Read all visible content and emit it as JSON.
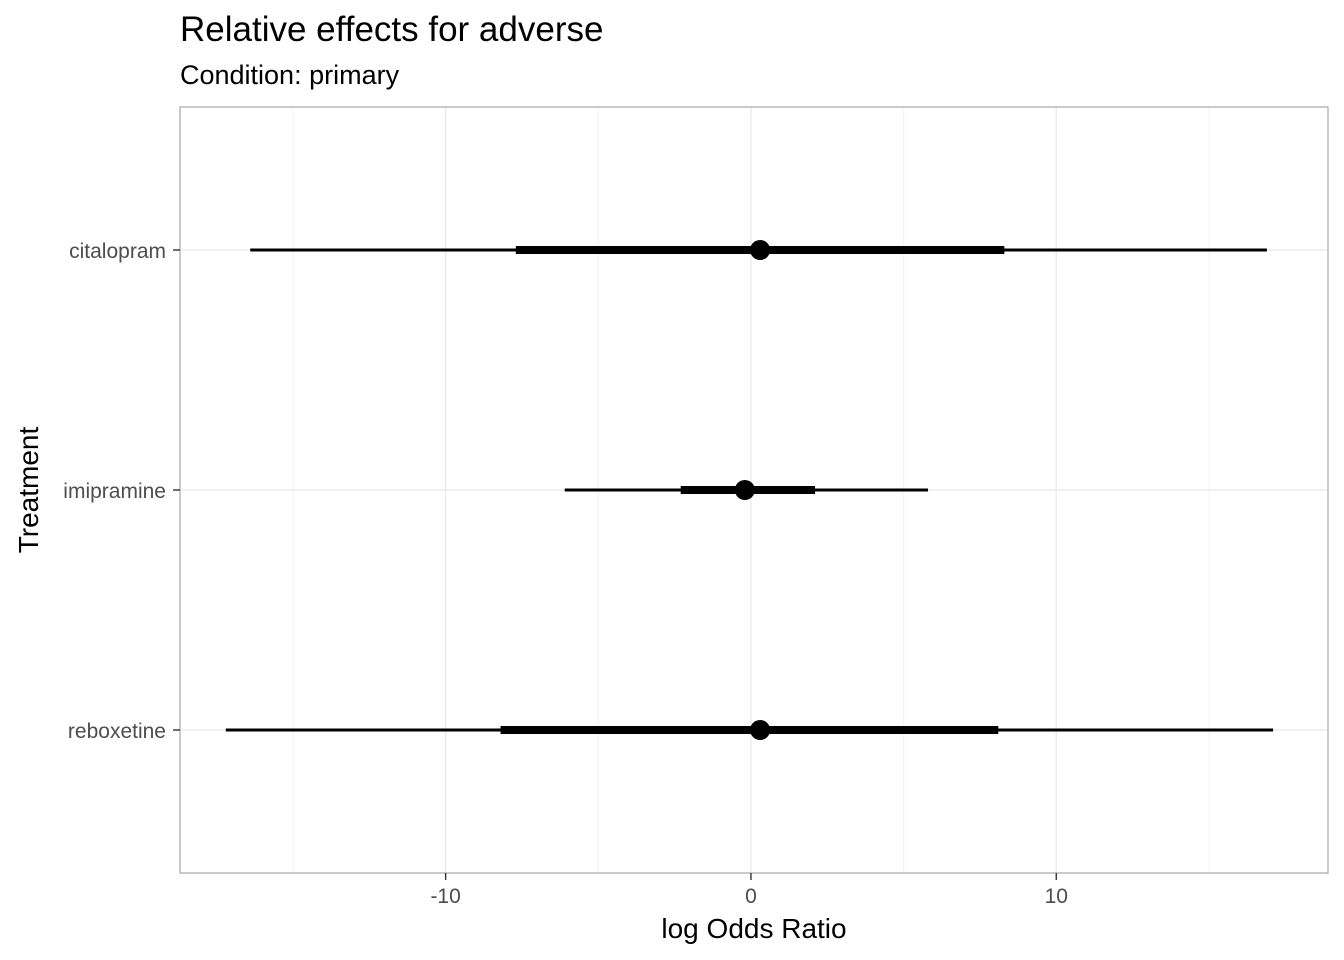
{
  "chart_data": {
    "type": "forest",
    "title": "Relative effects for adverse",
    "subtitle": "Condition: primary",
    "xlabel": "log Odds Ratio",
    "ylabel": "Treatment",
    "xlim": [
      -18.7,
      18.9
    ],
    "x_ticks": [
      -10,
      0,
      10
    ],
    "x_tick_labels": [
      "-10",
      "0",
      "10"
    ],
    "categories": [
      "citalopram",
      "imipramine",
      "reboxetine"
    ],
    "estimates": [
      {
        "treatment": "citalopram",
        "point": 0.3,
        "inner": [
          -7.7,
          8.3
        ],
        "outer": [
          -16.4,
          16.9
        ]
      },
      {
        "treatment": "imipramine",
        "point": -0.2,
        "inner": [
          -2.3,
          2.1
        ],
        "outer": [
          -6.1,
          5.8
        ]
      },
      {
        "treatment": "reboxetine",
        "point": 0.3,
        "inner": [
          -8.2,
          8.1
        ],
        "outer": [
          -17.2,
          17.1
        ]
      }
    ],
    "grid": true,
    "point_color": "#000000",
    "panel_border_color": "#b3b3b3",
    "grid_color": "#ebebeb"
  }
}
